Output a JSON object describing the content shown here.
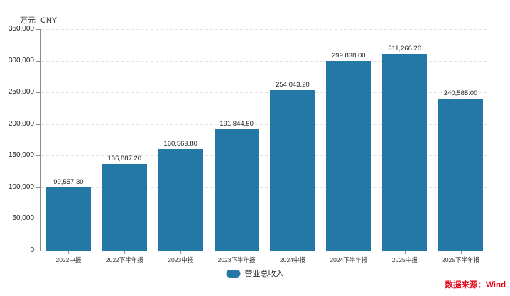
{
  "chart_data": {
    "type": "bar",
    "title": "",
    "unit_label": "万元 CNY",
    "categories": [
      "2022中报",
      "2022下半年报",
      "2023中报",
      "2023下半年报",
      "2024中报",
      "2024下半年报",
      "2025中报",
      "2025下半年报"
    ],
    "series": [
      {
        "name": "营业总收入",
        "values": [
          99557.3,
          136887.2,
          160569.8,
          191844.5,
          254043.2,
          299838.0,
          311266.2,
          240585.0
        ]
      }
    ],
    "value_labels": [
      "99,557.30",
      "136,887.20",
      "160,569.80",
      "191,844.50",
      "254,043.20",
      "299,838.00",
      "311,266.20",
      "240,585.00"
    ],
    "ylim": [
      0,
      350000
    ],
    "ytick_interval": 50000,
    "ytick_labels": [
      "0",
      "50,000",
      "100,000",
      "150,000",
      "200,000",
      "250,000",
      "300,000",
      "350,000"
    ],
    "grid": "horizontal-dashed",
    "legend_position": "bottom-center"
  },
  "source_note": "数据来源：Wind",
  "colors": {
    "bar": "#2478A6",
    "source_text": "#E60012",
    "axis": "#8C8C8C",
    "grid": "#E2E2E2"
  }
}
